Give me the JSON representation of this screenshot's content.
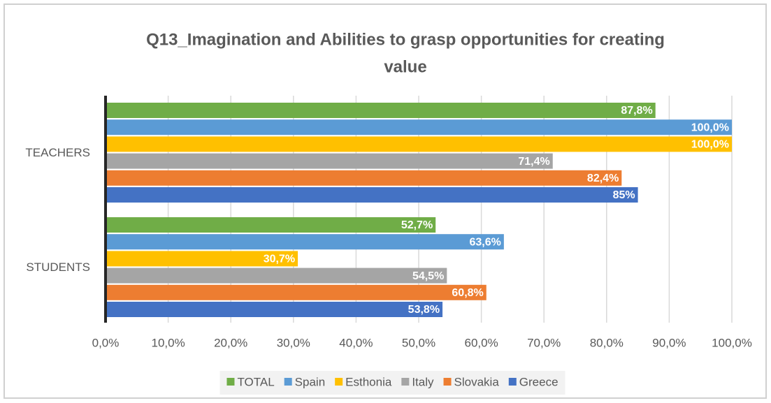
{
  "chart_data": {
    "type": "bar",
    "orientation": "horizontal",
    "title": [
      "Q13_Imagination and Abilities to grasp opportunities for creating",
      "value"
    ],
    "categories": [
      "TEACHERS",
      "STUDENTS"
    ],
    "series": [
      {
        "name": "TOTAL",
        "color": "#70ad47",
        "values": [
          87.8,
          52.7
        ],
        "value_labels": [
          "87,8%",
          "52,7%"
        ]
      },
      {
        "name": "Spain",
        "color": "#5b9bd5",
        "values": [
          100,
          63.6
        ],
        "value_labels": [
          "100,0%",
          "63,6%"
        ]
      },
      {
        "name": "Esthonia",
        "color": "#ffc000",
        "values": [
          100,
          30.7
        ],
        "value_labels": [
          "100,0%",
          "30,7%"
        ]
      },
      {
        "name": "Italy",
        "color": "#a5a5a5",
        "values": [
          71.4,
          54.5
        ],
        "value_labels": [
          "71,4%",
          "54,5%"
        ]
      },
      {
        "name": "Slovakia",
        "color": "#ed7d31",
        "values": [
          82.4,
          60.8
        ],
        "value_labels": [
          "82,4%",
          "60,8%"
        ]
      },
      {
        "name": "Greece",
        "color": "#4472c4",
        "values": [
          85,
          53.8
        ],
        "value_labels": [
          "85%",
          "53,8%"
        ]
      }
    ],
    "xlim": [
      0,
      100
    ],
    "xticks": [
      {
        "value": 0,
        "label": "0,0%"
      },
      {
        "value": 10,
        "label": "10,0%"
      },
      {
        "value": 20,
        "label": "20,0%"
      },
      {
        "value": 30,
        "label": "30,0%"
      },
      {
        "value": 40,
        "label": "40,0%"
      },
      {
        "value": 50,
        "label": "50,0%"
      },
      {
        "value": 60,
        "label": "60,0%"
      },
      {
        "value": 70,
        "label": "70,0%"
      },
      {
        "value": 80,
        "label": "80,0%"
      },
      {
        "value": 90,
        "label": "90,0%"
      },
      {
        "value": 100,
        "label": "100,0%"
      }
    ],
    "grid": true,
    "legend": "bottom"
  }
}
